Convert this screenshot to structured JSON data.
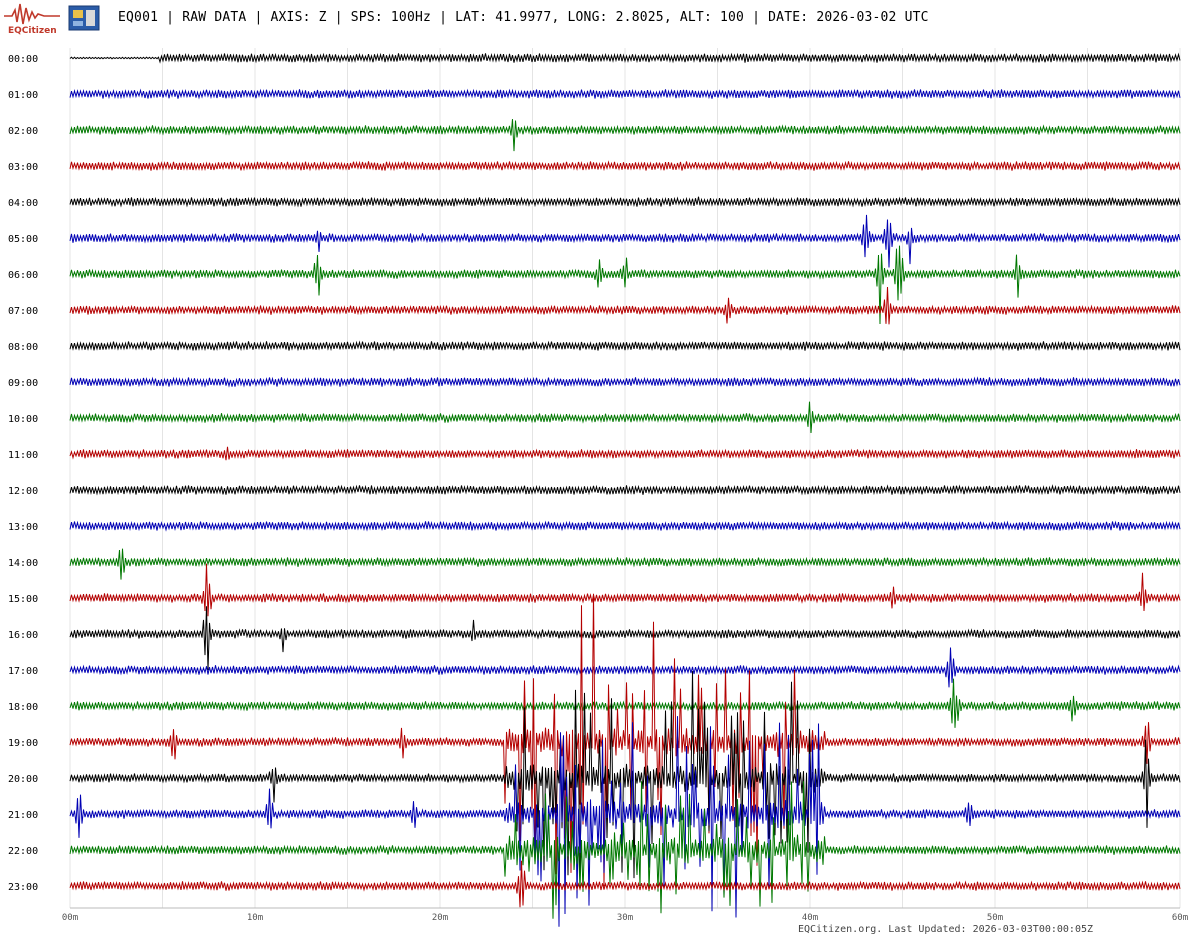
{
  "header": {
    "logo_text": "EQCitizen",
    "title": "EQ001 | RAW DATA | AXIS: Z | SPS: 100Hz | LAT: 41.9977, LONG: 2.8025, ALT: 100 | DATE: 2026-03-02 UTC",
    "logo_icon": "seismograph-logo-icon",
    "device_icon": "sensor-chip-icon"
  },
  "footer": {
    "text": "EQCitizen.org. Last Updated: 2026-03-03T00:00:05Z"
  },
  "chart_data": {
    "type": "line",
    "chart_kind": "helicorder",
    "rows": [
      "00:00",
      "01:00",
      "02:00",
      "03:00",
      "04:00",
      "05:00",
      "06:00",
      "07:00",
      "08:00",
      "09:00",
      "10:00",
      "11:00",
      "12:00",
      "13:00",
      "14:00",
      "15:00",
      "16:00",
      "17:00",
      "18:00",
      "19:00",
      "20:00",
      "21:00",
      "22:00",
      "23:00"
    ],
    "row_colors": [
      "#000000",
      "#0000b4",
      "#007800",
      "#b40000"
    ],
    "x_ticks": [
      "00m",
      "10m",
      "20m",
      "30m",
      "40m",
      "50m",
      "60m"
    ],
    "xlim_minutes": [
      0,
      60
    ],
    "grid": true,
    "events": [
      {
        "row": 2,
        "minute": 24.0,
        "amp": 0.8
      },
      {
        "row": 4,
        "minute": 34.0,
        "amp": 0.3
      },
      {
        "row": 5,
        "minute": 13.4,
        "amp": 0.7
      },
      {
        "row": 5,
        "minute": 43.0,
        "amp": 1.5
      },
      {
        "row": 5,
        "minute": 44.2,
        "amp": 1.6
      },
      {
        "row": 5,
        "minute": 45.4,
        "amp": 0.9
      },
      {
        "row": 6,
        "minute": 13.4,
        "amp": 1.2
      },
      {
        "row": 6,
        "minute": 28.6,
        "amp": 0.9
      },
      {
        "row": 6,
        "minute": 30.0,
        "amp": 1.0
      },
      {
        "row": 6,
        "minute": 43.8,
        "amp": 2.0
      },
      {
        "row": 6,
        "minute": 44.8,
        "amp": 2.2
      },
      {
        "row": 6,
        "minute": 51.2,
        "amp": 1.0
      },
      {
        "row": 7,
        "minute": 35.6,
        "amp": 0.9
      },
      {
        "row": 7,
        "minute": 44.2,
        "amp": 1.2
      },
      {
        "row": 10,
        "minute": 40.0,
        "amp": 0.8
      },
      {
        "row": 11,
        "minute": 8.5,
        "amp": 0.4
      },
      {
        "row": 14,
        "minute": 2.8,
        "amp": 0.9
      },
      {
        "row": 15,
        "minute": 7.4,
        "amp": 1.6
      },
      {
        "row": 15,
        "minute": 44.5,
        "amp": 0.6
      },
      {
        "row": 15,
        "minute": 58.0,
        "amp": 0.9
      },
      {
        "row": 16,
        "minute": 7.4,
        "amp": 2.0
      },
      {
        "row": 16,
        "minute": 11.5,
        "amp": 0.6
      },
      {
        "row": 16,
        "minute": 21.8,
        "amp": 0.5
      },
      {
        "row": 17,
        "minute": 47.6,
        "amp": 1.3
      },
      {
        "row": 18,
        "minute": 47.8,
        "amp": 2.0
      },
      {
        "row": 18,
        "minute": 54.2,
        "amp": 0.9
      },
      {
        "row": 19,
        "minute": 5.6,
        "amp": 0.9
      },
      {
        "row": 19,
        "minute": 18.0,
        "amp": 0.8
      },
      {
        "row": 19,
        "minute": 58.2,
        "amp": 1.2
      },
      {
        "row": 20,
        "minute": 11.0,
        "amp": 1.0
      },
      {
        "row": 20,
        "minute": 58.2,
        "amp": 2.0
      },
      {
        "row": 21,
        "minute": 0.5,
        "amp": 1.2
      },
      {
        "row": 21,
        "minute": 10.8,
        "amp": 1.3
      },
      {
        "row": 21,
        "minute": 18.6,
        "amp": 0.9
      },
      {
        "row": 21,
        "minute": 48.6,
        "amp": 0.8
      },
      {
        "row": 22,
        "minute": 24.2,
        "amp": 0.6
      },
      {
        "row": 23,
        "minute": 24.4,
        "amp": 1.5
      }
    ],
    "bursts": [
      {
        "row": 19,
        "from": 23.5,
        "to": 40.8,
        "amp": 4.5
      },
      {
        "row": 20,
        "from": 23.5,
        "to": 40.8,
        "amp": 3.5
      },
      {
        "row": 21,
        "from": 23.5,
        "to": 40.8,
        "amp": 3.5
      },
      {
        "row": 22,
        "from": 23.5,
        "to": 40.8,
        "amp": 2.5
      }
    ],
    "gaps": [
      {
        "row": 0,
        "from": 0,
        "to": 4.8
      }
    ]
  }
}
